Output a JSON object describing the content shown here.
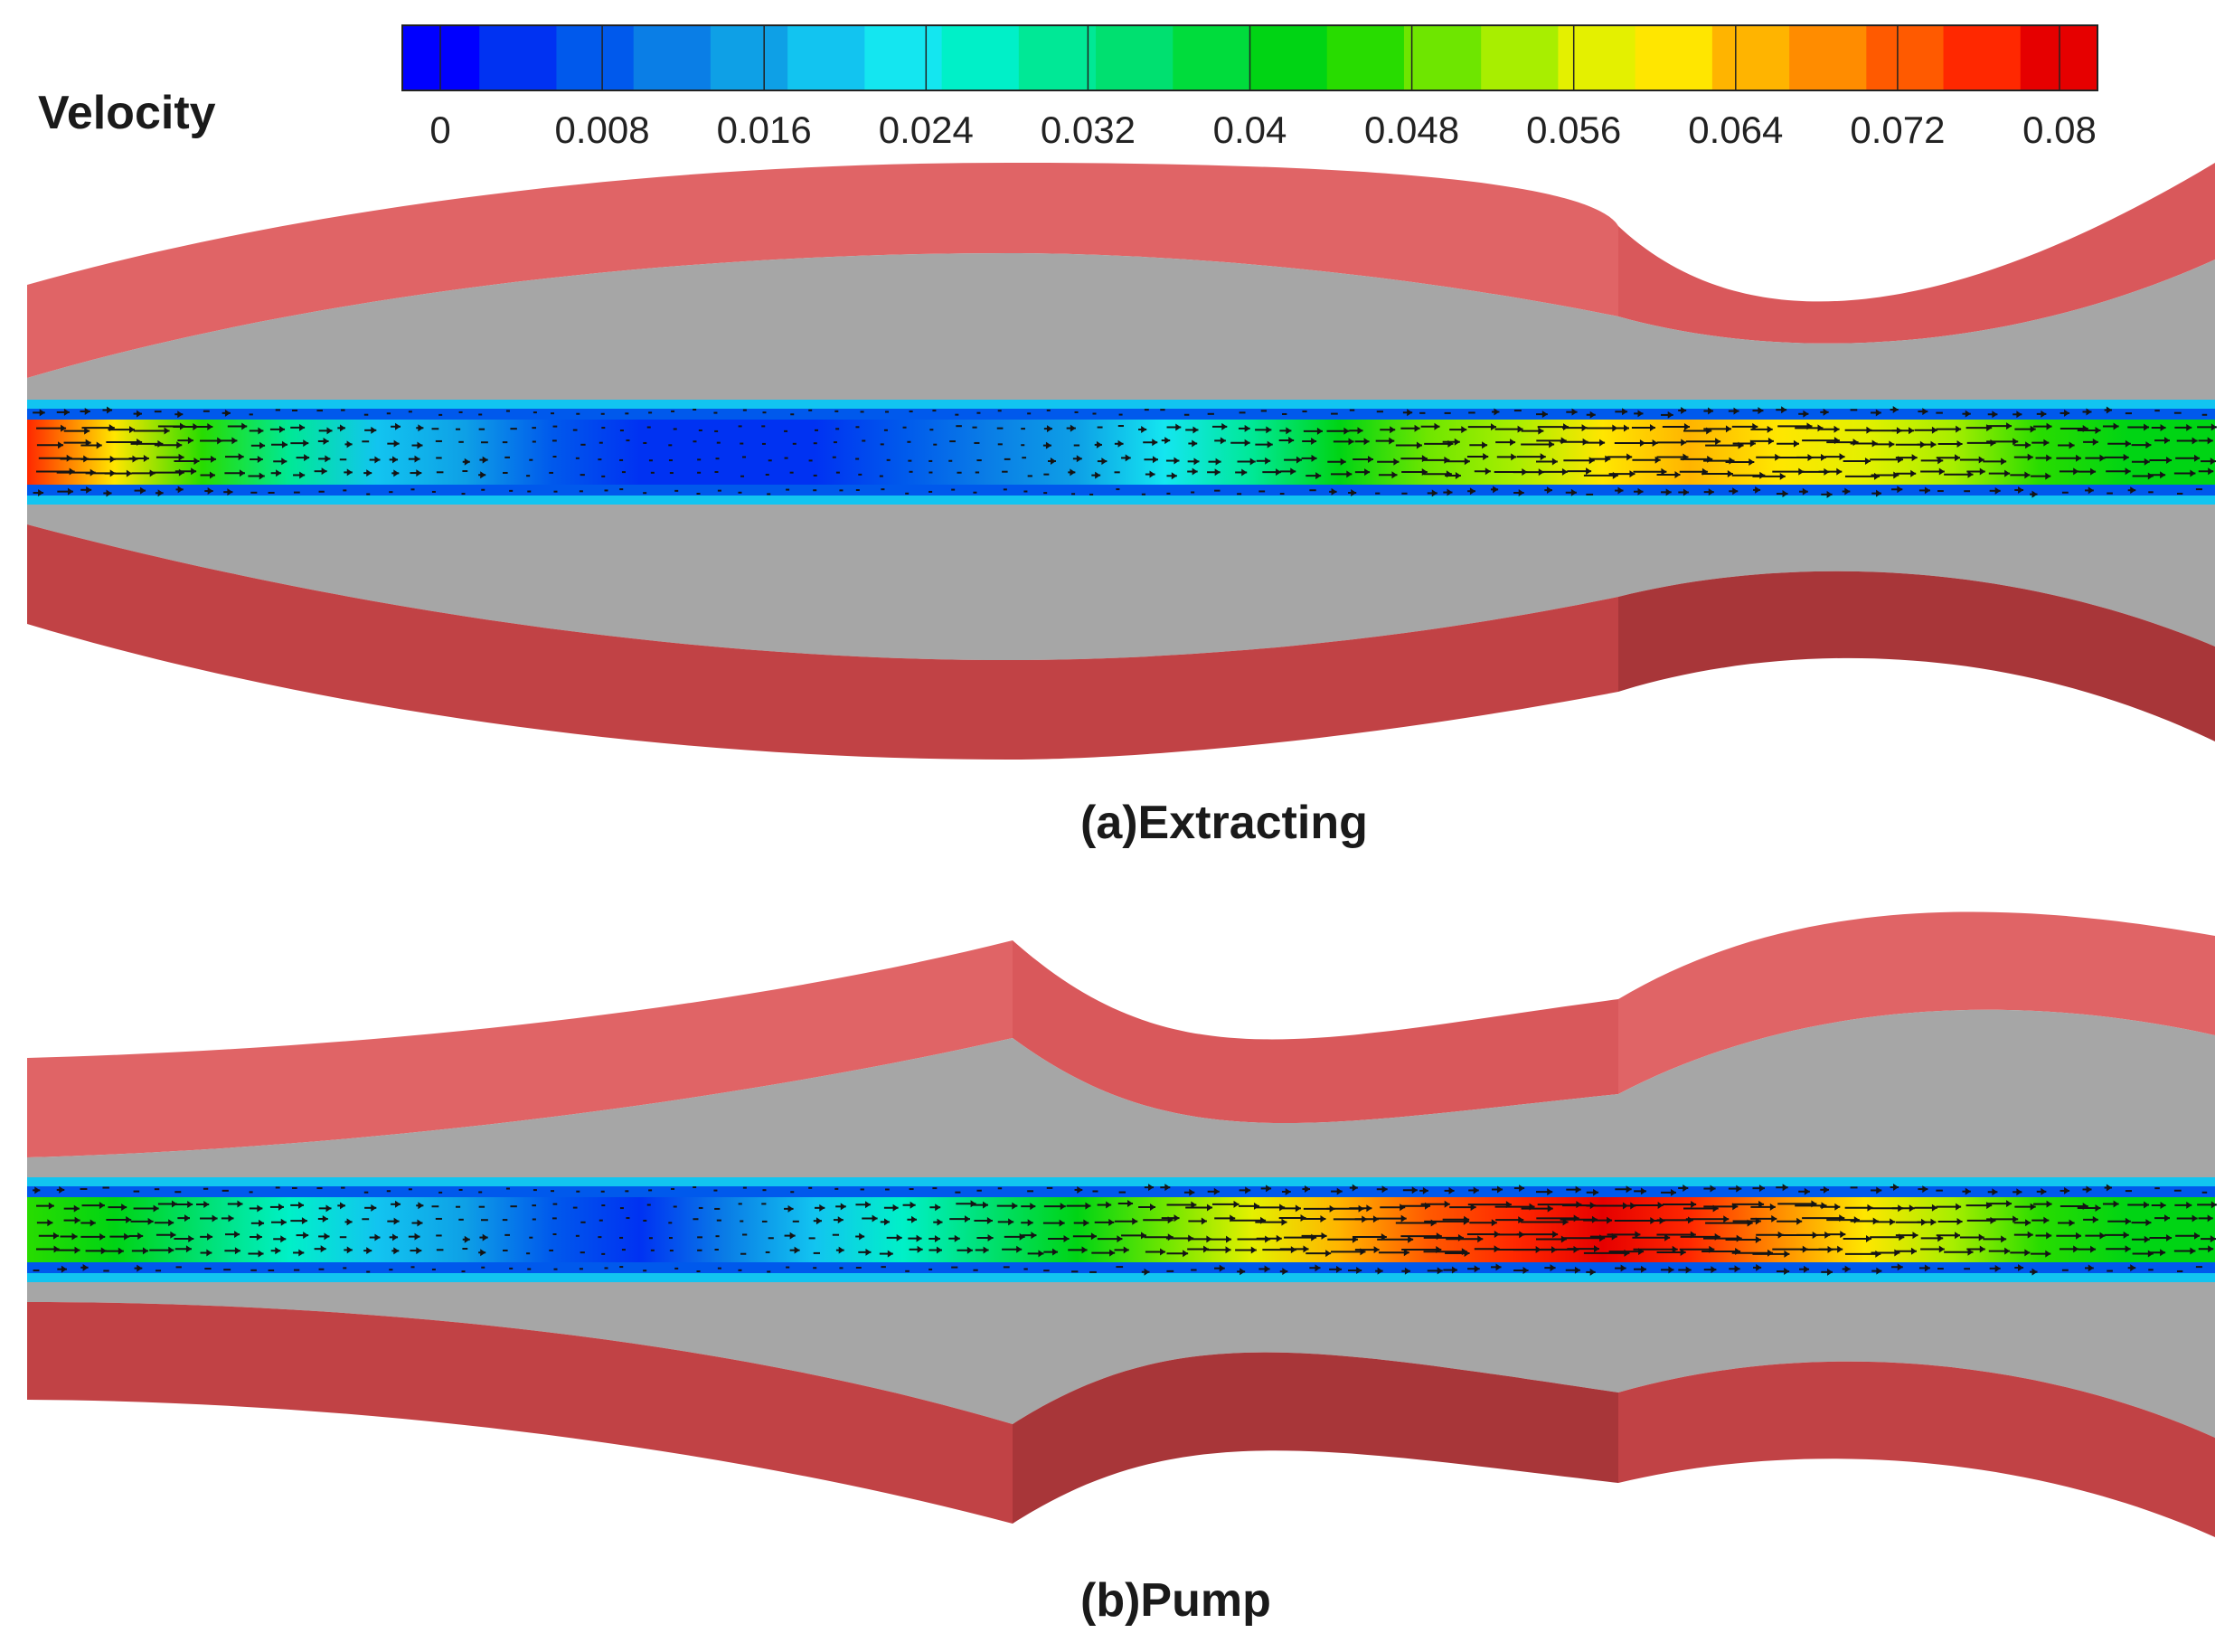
{
  "legend": {
    "title": "Velocity",
    "tick_labels": [
      "0",
      "0.008",
      "0.016",
      "0.024",
      "0.032",
      "0.04",
      "0.048",
      "0.056",
      "0.064",
      "0.072",
      "0.08"
    ],
    "range": [
      0,
      0.08
    ],
    "band_count": 21,
    "colors": [
      "#0000ff",
      "#0032f2",
      "#0059ec",
      "#0a7ee6",
      "#0ea0e6",
      "#12c4f0",
      "#14e6f0",
      "#00f0c8",
      "#00e896",
      "#00e070",
      "#00dc3c",
      "#00d414",
      "#28dc00",
      "#6ee600",
      "#a8ee00",
      "#e4f000",
      "#ffe600",
      "#ffb400",
      "#ff8c00",
      "#ff5a00",
      "#ff2800",
      "#e60000"
    ]
  },
  "panels": [
    {
      "id": "a",
      "caption": "(a)Extracting",
      "jet_profile": [
        0.075,
        0.06,
        0.045,
        0.03,
        0.02,
        0.014,
        0.008,
        0.004,
        0.002,
        0.003,
        0.006,
        0.01,
        0.016,
        0.024,
        0.032,
        0.04,
        0.048,
        0.055,
        0.06,
        0.063,
        0.062,
        0.058,
        0.052,
        0.046,
        0.042,
        0.04
      ]
    },
    {
      "id": "b",
      "caption": "(b)Pump",
      "jet_profile": [
        0.045,
        0.042,
        0.035,
        0.028,
        0.02,
        0.014,
        0.008,
        0.004,
        0.01,
        0.018,
        0.026,
        0.034,
        0.042,
        0.05,
        0.058,
        0.066,
        0.074,
        0.078,
        0.08,
        0.078,
        0.07,
        0.06,
        0.052,
        0.046,
        0.042,
        0.04
      ]
    }
  ],
  "colors": {
    "wall_top": "#e06466",
    "wall_top_dark": "#d9585b",
    "wall_bottom": "#c14245",
    "wall_bottom_dark": "#a83639",
    "lumen": "#a6a6a6",
    "arrow": "#141414"
  }
}
